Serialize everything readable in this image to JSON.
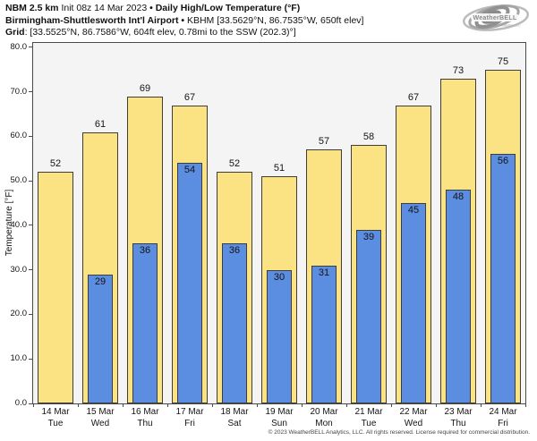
{
  "header": {
    "line1": [
      {
        "text": "NBM 2.5 km",
        "bold": true
      },
      {
        "text": " Init 08z 14 Mar 2023 ",
        "bold": false
      },
      {
        "text": "• ",
        "bold": true
      },
      {
        "text": "Daily High/Low Temperature (°F)",
        "bold": true
      }
    ],
    "line2": [
      {
        "text": "Birmingham-Shuttlesworth Int'l Airport",
        "bold": true
      },
      {
        "text": " • ",
        "bold": true
      },
      {
        "text": "KBHM [33.5629°N, 86.7535°W, 650ft elev]",
        "bold": false
      }
    ],
    "line3": [
      {
        "text": "Grid",
        "bold": true
      },
      {
        "text": ": [33.5525°N, 86.7586°W, 604ft elev, 0.78mi to the SSW (202.3)°]",
        "bold": false
      }
    ]
  },
  "logo": {
    "brand": "WeatherBELL",
    "sub": "Analytics LLC"
  },
  "chart_data": {
    "type": "bar",
    "title": "Daily High/Low Temperature (°F)",
    "subtitle": "NBM 2.5 km Init 08z 14 Mar 2023 — KBHM Birmingham-Shuttlesworth Int'l Airport",
    "xlabel": "",
    "ylabel": "Temperature [°F]",
    "ylim": [
      0,
      81
    ],
    "yticks": [
      "0.0",
      "10.0",
      "20.0",
      "30.0",
      "40.0",
      "50.0",
      "60.0",
      "70.0",
      "80.0"
    ],
    "grid": false,
    "legend": "none",
    "categories": [
      {
        "date": "14 Mar",
        "day": "Tue"
      },
      {
        "date": "15 Mar",
        "day": "Wed"
      },
      {
        "date": "16 Mar",
        "day": "Thu"
      },
      {
        "date": "17 Mar",
        "day": "Fri"
      },
      {
        "date": "18 Mar",
        "day": "Sat"
      },
      {
        "date": "19 Mar",
        "day": "Sun"
      },
      {
        "date": "20 Mar",
        "day": "Mon"
      },
      {
        "date": "21 Mar",
        "day": "Tue"
      },
      {
        "date": "22 Mar",
        "day": "Wed"
      },
      {
        "date": "23 Mar",
        "day": "Thu"
      },
      {
        "date": "24 Mar",
        "day": "Fri"
      }
    ],
    "series": [
      {
        "name": "Daily High",
        "color": "#FBE283",
        "values": [
          52,
          61,
          69,
          67,
          52,
          51,
          57,
          58,
          67,
          73,
          75
        ]
      },
      {
        "name": "Daily Low",
        "color": "#5B8DE0",
        "values": [
          null,
          29,
          36,
          54,
          36,
          30,
          31,
          39,
          45,
          48,
          56
        ]
      }
    ],
    "colors": {
      "plot_bg": "#f4f4f4",
      "bar_border": "#3d3d3d",
      "axis": "#4a4a4a"
    }
  },
  "footer": {
    "copyright": "© 2023 WeatherBELL Analytics, LLC. All rights reserved. License required for commercial distribution."
  }
}
